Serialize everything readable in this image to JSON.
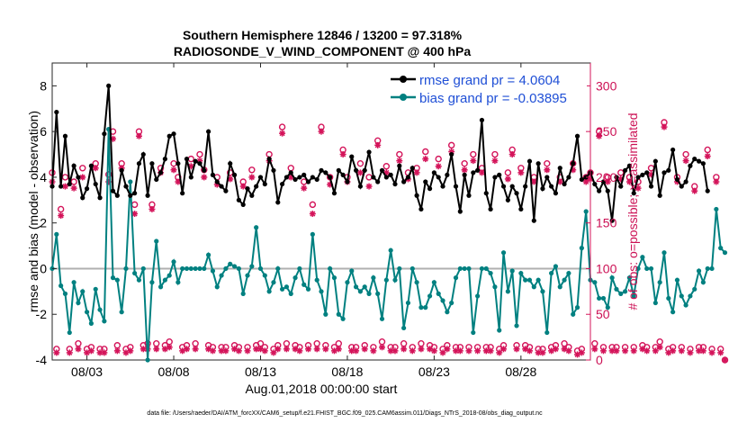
{
  "colors": {
    "rmse": "#000000",
    "bias": "#008080",
    "obs": "#d4145a",
    "zero_line": "#b0b0b0",
    "legend_text": "#1f4fd6"
  },
  "chart_data": {
    "type": "line",
    "title": "Southern Hemisphere 12846 / 13200 = 97.318%",
    "subtitle": "RADIOSONDE_V_WIND_COMPONENT @ 400 hPa",
    "xlabel": "Aug.01,2018 00:00:00 start",
    "ylabel": "rmse and bias (model - observation)",
    "ylabel_right": "# of obs: o=possible; ×=assimilated",
    "xlim": [
      1.0,
      32.0
    ],
    "ylim": [
      -4,
      9
    ],
    "ylim_right": [
      0,
      325
    ],
    "x_tick_values": [
      3,
      8,
      13,
      18,
      23,
      28
    ],
    "x_tick_labels": [
      "08/03",
      "08/08",
      "08/13",
      "08/18",
      "08/23",
      "08/28"
    ],
    "y_ticks": [
      -4,
      -2,
      0,
      2,
      4,
      6,
      8
    ],
    "y_ticks_right": [
      0,
      50,
      100,
      150,
      200,
      250,
      300
    ],
    "legend": [
      {
        "label": "rmse grand pr = 4.0604",
        "series": "rmse"
      },
      {
        "label": "bias grand pr = -0.03895",
        "series": "bias"
      }
    ],
    "legend_location": "top-right",
    "x_start": 1.0,
    "x_step": 0.25,
    "series": [
      {
        "name": "rmse",
        "axis": "left",
        "marker": "filled-circle",
        "values": [
          3.6,
          6.85,
          3.6,
          5.8,
          3.7,
          4.5,
          4.0,
          3.1,
          3.5,
          4.5,
          3.7,
          3.1,
          5.9,
          8.0,
          3.4,
          3.2,
          4.3,
          3.6,
          3.2,
          3.3,
          4.6,
          5.0,
          3.2,
          4.6,
          3.9,
          4.2,
          4.8,
          5.8,
          5.9,
          4.6,
          3.3,
          4.8,
          4.0,
          4.7,
          4.6,
          4.3,
          6.0,
          4.1,
          3.8,
          3.6,
          3.4,
          4.6,
          4.1,
          3.0,
          2.8,
          3.5,
          3.2,
          3.6,
          4.0,
          3.7,
          4.8,
          4.3,
          2.9,
          3.7,
          4.0,
          4.2,
          3.9,
          4.0,
          4.1,
          3.8,
          4.0,
          3.9,
          4.3,
          4.2,
          4.0,
          3.3,
          4.3,
          4.1,
          3.8,
          4.9,
          4.3,
          3.6,
          4.3,
          5.1,
          4.0,
          3.8,
          4.3,
          4.0,
          4.1,
          3.7,
          4.5,
          3.8,
          4.0,
          4.4,
          3.2,
          2.6,
          3.8,
          3.5,
          4.2,
          4.0,
          3.6,
          4.1,
          5.0,
          3.6,
          2.5,
          4.1,
          3.2,
          4.2,
          4.3,
          6.5,
          3.3,
          2.6,
          4.0,
          4.1,
          3.6,
          3.0,
          3.6,
          3.3,
          2.6,
          3.6,
          4.7,
          2.1,
          4.6,
          3.5,
          4.0,
          3.6,
          3.3,
          4.4,
          3.7,
          4.0,
          4.6,
          5.8,
          3.9,
          4.0,
          4.2,
          3.7,
          3.4,
          3.8,
          3.4,
          2.1,
          4.0,
          3.6,
          4.3,
          4.5,
          3.3,
          4.0,
          4.1,
          4.2,
          3.6,
          4.7,
          3.2,
          4.2,
          4.3,
          5.2,
          3.9,
          3.6,
          3.8,
          4.5,
          4.8,
          4.7,
          4.6,
          3.4
        ]
      },
      {
        "name": "bias",
        "axis": "left",
        "marker": "filled-circle",
        "values": [
          0.0,
          1.5,
          -0.75,
          -1.1,
          -2.8,
          -0.6,
          -1.5,
          -1.0,
          -1.9,
          -2.4,
          -0.9,
          -1.8,
          -2.3,
          6.1,
          -0.4,
          -0.5,
          -1.9,
          0.0,
          3.8,
          -0.2,
          -0.5,
          0.0,
          -4.0,
          -0.6,
          1.2,
          -0.8,
          -0.5,
          -0.3,
          0.3,
          -0.6,
          0.0,
          0.0,
          0.0,
          0.0,
          0.0,
          0.0,
          0.6,
          -0.1,
          -0.8,
          -0.3,
          0.0,
          0.2,
          0.1,
          0.0,
          -1.1,
          -0.3,
          0.1,
          1.8,
          0.0,
          -0.3,
          -1.0,
          -0.6,
          0.0,
          -0.9,
          -0.8,
          -1.1,
          -0.4,
          0.0,
          -0.7,
          -0.9,
          1.5,
          -0.5,
          -1.0,
          -2.0,
          0.0,
          -0.4,
          -2.0,
          -2.2,
          -0.6,
          -0.1,
          -0.8,
          -1.0,
          -0.8,
          -1.1,
          -0.4,
          -1.1,
          -2.2,
          -0.5,
          0.8,
          -0.5,
          0.0,
          -2.6,
          -1.5,
          0.0,
          -0.6,
          -1.7,
          -1.7,
          -1.2,
          -0.6,
          -1.1,
          -1.4,
          -1.9,
          -1.5,
          -0.4,
          0.0,
          0.0,
          0.0,
          -2.8,
          -1.2,
          0.0,
          0.0,
          -0.2,
          -0.8,
          -2.7,
          0.7,
          -1.0,
          -0.1,
          -2.5,
          -0.2,
          -0.5,
          -0.5,
          -0.8,
          -0.5,
          -1.0,
          -2.8,
          -0.2,
          0.1,
          -0.8,
          -0.5,
          -0.2,
          -2.0,
          -1.7,
          0.9,
          2.5,
          -0.5,
          -0.6,
          -1.3,
          -1.3,
          -1.7,
          -0.4,
          -0.9,
          -1.1,
          -1.0,
          -0.4,
          -1.2,
          0.0,
          0.5,
          0.0,
          0.0,
          -1.5,
          -0.6,
          0.7,
          -1.3,
          -1.9,
          -0.5,
          -1.2,
          -1.6,
          -1.2,
          -0.9,
          -0.1,
          -0.6,
          0.0,
          0.0,
          2.6,
          0.9,
          0.7
        ]
      },
      {
        "name": "obs_possible",
        "axis": "right",
        "marker": "open-circle",
        "values": [
          205,
          12,
          165,
          200,
          12,
          195,
          18,
          210,
          12,
          14,
          215,
          12,
          12,
          203,
          250,
          16,
          215,
          12,
          14,
          170,
          250,
          16,
          18,
          170,
          18,
          210,
          16,
          20,
          215,
          200,
          14,
          16,
          220,
          18,
          225,
          208,
          16,
          14,
          200,
          14,
          14,
          205,
          16,
          14,
          195,
          14,
          208,
          16,
          18,
          14,
          225,
          12,
          16,
          255,
          18,
          210,
          16,
          14,
          195,
          16,
          170,
          18,
          255,
          16,
          200,
          14,
          18,
          230,
          200,
          14,
          14,
          215,
          16,
          200,
          14,
          240,
          20,
          212,
          14,
          14,
          225,
          18,
          205,
          14,
          210,
          18,
          228,
          16,
          14,
          220,
          12,
          16,
          235,
          14,
          14,
          215,
          14,
          225,
          14,
          210,
          14,
          14,
          225,
          12,
          16,
          205,
          230,
          16,
          210,
          16,
          14,
          200,
          12,
          12,
          215,
          14,
          16,
          200,
          18,
          14,
          215,
          10,
          12,
          200,
          205,
          18,
          250,
          14,
          200,
          14,
          14,
          205,
          14,
          200,
          14,
          195,
          16,
          14,
          210,
          14,
          20,
          260,
          12,
          14,
          200,
          14,
          225,
          12,
          190,
          14,
          14,
          230,
          12,
          200,
          12,
          0
        ]
      },
      {
        "name": "obs_assimilated",
        "axis": "right",
        "marker": "asterisk",
        "values": [
          195,
          8,
          158,
          190,
          8,
          188,
          12,
          200,
          8,
          10,
          210,
          8,
          8,
          195,
          242,
          10,
          210,
          8,
          10,
          160,
          245,
          12,
          12,
          165,
          12,
          205,
          12,
          14,
          208,
          195,
          10,
          12,
          212,
          12,
          218,
          200,
          12,
          10,
          192,
          10,
          10,
          198,
          12,
          10,
          190,
          10,
          200,
          12,
          12,
          10,
          218,
          8,
          12,
          248,
          12,
          200,
          12,
          10,
          188,
          12,
          160,
          12,
          250,
          12,
          192,
          10,
          12,
          225,
          195,
          10,
          10,
          205,
          12,
          190,
          10,
          235,
          14,
          205,
          10,
          10,
          218,
          12,
          198,
          10,
          205,
          12,
          220,
          12,
          10,
          212,
          8,
          12,
          228,
          10,
          10,
          208,
          10,
          218,
          10,
          205,
          10,
          10,
          218,
          8,
          12,
          198,
          225,
          12,
          205,
          12,
          10,
          195,
          8,
          8,
          208,
          10,
          12,
          195,
          12,
          10,
          208,
          6,
          8,
          195,
          198,
          12,
          245,
          10,
          195,
          10,
          10,
          198,
          10,
          195,
          10,
          188,
          12,
          10,
          203,
          10,
          14,
          255,
          8,
          10,
          195,
          10,
          218,
          8,
          185,
          10,
          10,
          223,
          8,
          195,
          8,
          0
        ]
      }
    ]
  },
  "footer": "data file: /Users/raeder/DAI/ATM_forcXX/CAM6_setup/f.e21.FHIST_BGC.f09_025.CAM6assim.011/Diags_NTrS_2018-08/obs_diag_output.nc"
}
